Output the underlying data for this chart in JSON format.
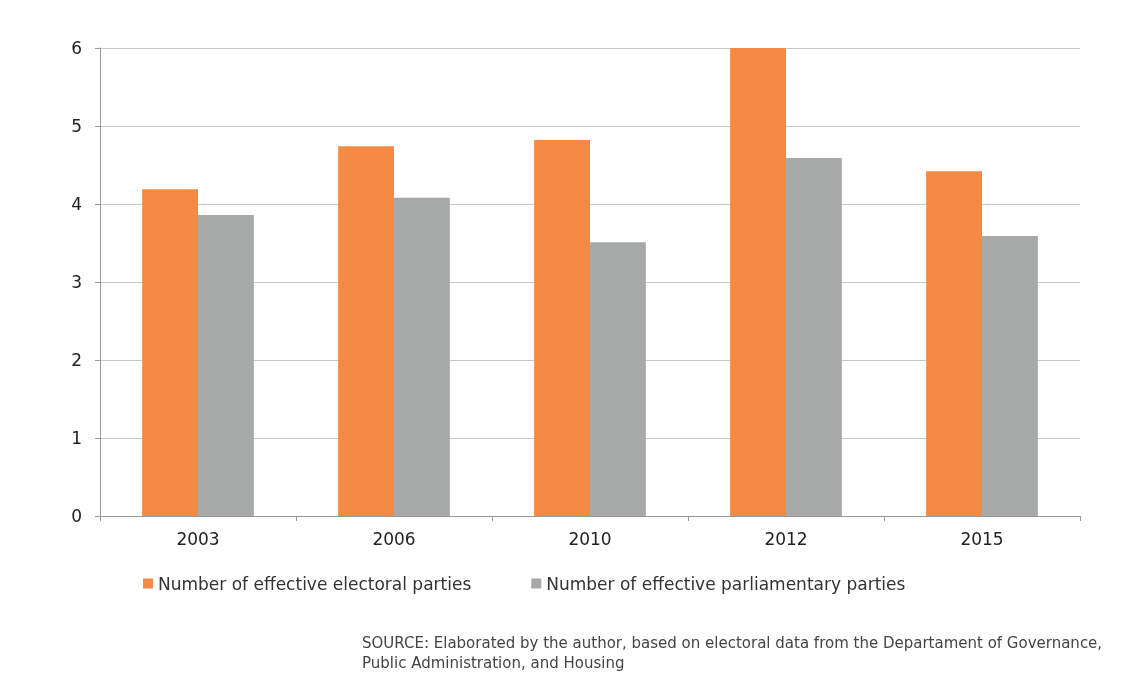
{
  "chart_data": {
    "type": "bar",
    "categories": [
      "2003",
      "2006",
      "2010",
      "2012",
      "2015"
    ],
    "series": [
      {
        "name": "Number of effective electoral parties",
        "color": "#f58a45",
        "values": [
          4.19,
          4.74,
          4.82,
          6.0,
          4.42
        ]
      },
      {
        "name": "Number of effective parliamentary parties",
        "color": "#a7a9a9",
        "values": [
          3.86,
          4.08,
          3.51,
          4.59,
          3.59
        ]
      }
    ],
    "ylim": [
      0,
      6
    ],
    "yticks": [
      0,
      1,
      2,
      3,
      4,
      5,
      6
    ],
    "grid": "y",
    "legend": "bottom",
    "annotations": [
      "SOURCE: Elaborated by the author, based on electoral data from the Departament of Governance, Public Administration, and Housing"
    ]
  }
}
